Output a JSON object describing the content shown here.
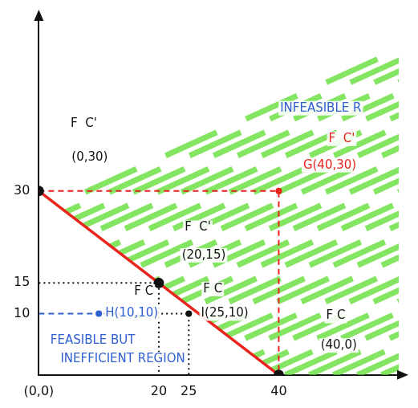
{
  "chart_data": {
    "type": "line",
    "xlim": [
      0,
      60
    ],
    "ylim": [
      0,
      58
    ],
    "xticks": [
      {
        "value": 0,
        "label": "(0,0)"
      },
      20,
      25,
      40
    ],
    "yticks": [
      10,
      15,
      30
    ],
    "grid": false,
    "series": [
      {
        "type": "scatter",
        "color": "#111111",
        "marker": "circle",
        "x": [
          0,
          20,
          40
        ],
        "values": [
          30,
          15,
          0
        ]
      },
      {
        "type": "scatter",
        "color": "#e8241c",
        "marker": "point",
        "x": [
          40
        ],
        "values": [
          30
        ]
      },
      {
        "type": "scatter",
        "color": "#2f5fd0",
        "marker": "point",
        "x": [
          10
        ],
        "values": [
          10
        ]
      },
      {
        "type": "scatter",
        "color": "#111111",
        "marker": "point",
        "x": [
          25
        ],
        "values": [
          10
        ]
      },
      {
        "type": "line",
        "color": "#e8241c",
        "line_style": "solid",
        "marker": "none",
        "x": [
          0,
          40
        ],
        "values": [
          30,
          0
        ]
      },
      {
        "type": "line",
        "color": "#e8241c",
        "line_style": "dashed",
        "marker": "none",
        "x": [
          0,
          40,
          40
        ],
        "values": [
          30,
          30,
          0
        ]
      },
      {
        "type": "line",
        "color": "#111111",
        "line_style": "dotted",
        "marker": "none",
        "x": [
          0,
          20,
          20
        ],
        "values": [
          15,
          15,
          0
        ]
      },
      {
        "type": "line",
        "color": "#2f5fd0",
        "line_style": "dashed",
        "marker": "none",
        "x": [
          0,
          10
        ],
        "values": [
          10,
          10
        ]
      },
      {
        "type": "line",
        "color": "#111111",
        "line_style": "dotted",
        "marker": "none",
        "x": [
          10,
          25,
          25
        ],
        "values": [
          10,
          10,
          0
        ]
      }
    ],
    "annotations": [
      {
        "text": "F  C'",
        "x": 7.5,
        "y": 41,
        "color": "#111111"
      },
      {
        "text": "(0,30)",
        "x": 8.5,
        "y": 35.5,
        "color": "#111111"
      },
      {
        "text": "F  C'",
        "x": 26.5,
        "y": 24,
        "color": "#111111"
      },
      {
        "text": "(20,15)",
        "x": 27.5,
        "y": 19.5,
        "color": "#111111"
      },
      {
        "text": "INFEASIBLE R",
        "x": 47,
        "y": 43.5,
        "color": "#2f5fd0"
      },
      {
        "text": "F  C'",
        "x": 50.5,
        "y": 38.5,
        "color": "#e8241c"
      },
      {
        "text": "G(40,30)",
        "x": 48.5,
        "y": 34.2,
        "color": "#e8241c"
      },
      {
        "text": "F C",
        "x": 49.5,
        "y": 9.6,
        "color": "#111111"
      },
      {
        "text": "(40,0)",
        "x": 50,
        "y": 4.8,
        "color": "#111111"
      },
      {
        "text": "F C",
        "x": 17.5,
        "y": 13.6,
        "color": "#111111"
      },
      {
        "text": "H(10,10)",
        "x": 15.5,
        "y": 10,
        "color": "#2f5fd0"
      },
      {
        "text": "F C",
        "x": 29,
        "y": 14,
        "color": "#111111"
      },
      {
        "text": "I(25,10)",
        "x": 31,
        "y": 10,
        "color": "#111111"
      },
      {
        "text": "FEASIBLE BUT",
        "x": 9,
        "y": 5.6,
        "color": "#2f5fd0"
      },
      {
        "text": "INEFFICIENT REGION",
        "x": 14,
        "y": 2.6,
        "color": "#2f5fd0"
      }
    ]
  }
}
